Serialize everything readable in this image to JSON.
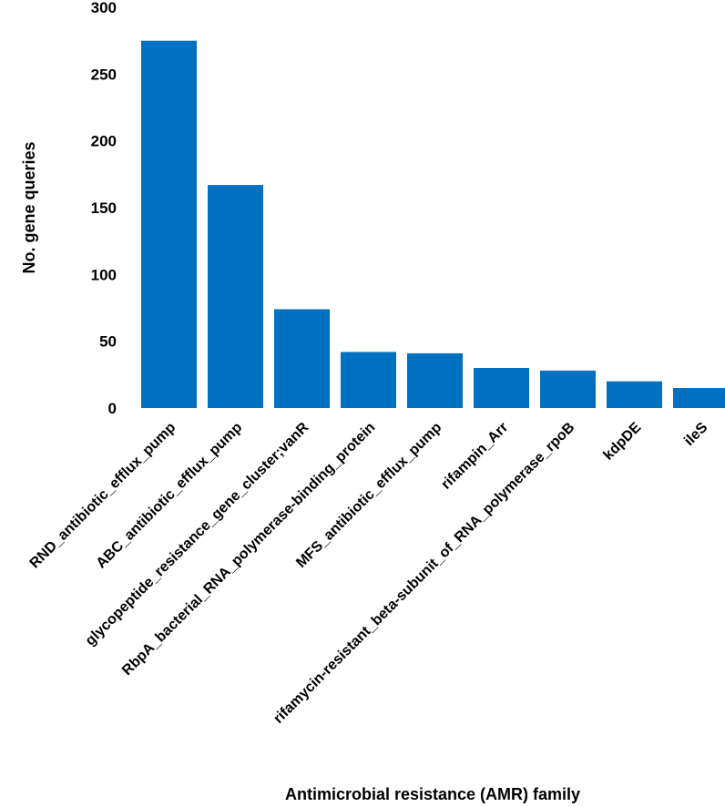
{
  "chart_data": {
    "type": "bar",
    "title": "",
    "xlabel": "Antimicrobial resistance (AMR) family",
    "ylabel": "No. gene queries",
    "ylim": [
      0,
      300
    ],
    "yticks": [
      "0",
      "50",
      "100",
      "150",
      "200",
      "250",
      "300"
    ],
    "grid": false,
    "legend": "none",
    "bar_color": "#0070C0",
    "categories": [
      "RND_antibiotic_efflux_pump",
      "ABC_antibiotic_efflux_pump",
      "glycopeptide_resistance_gene_cluster;vanR",
      "RbpA_bacterial_RNA_polymerase-binding_protein",
      "MFS_antibiotic_efflux_pump",
      "rifampin_Arr",
      "rifamycin-resistant_beta-subunit_of_RNA_polymerase_rpoB",
      "kdpDE",
      "ileS"
    ],
    "values": [
      275,
      167,
      74,
      42,
      41,
      30,
      28,
      20,
      15
    ]
  }
}
